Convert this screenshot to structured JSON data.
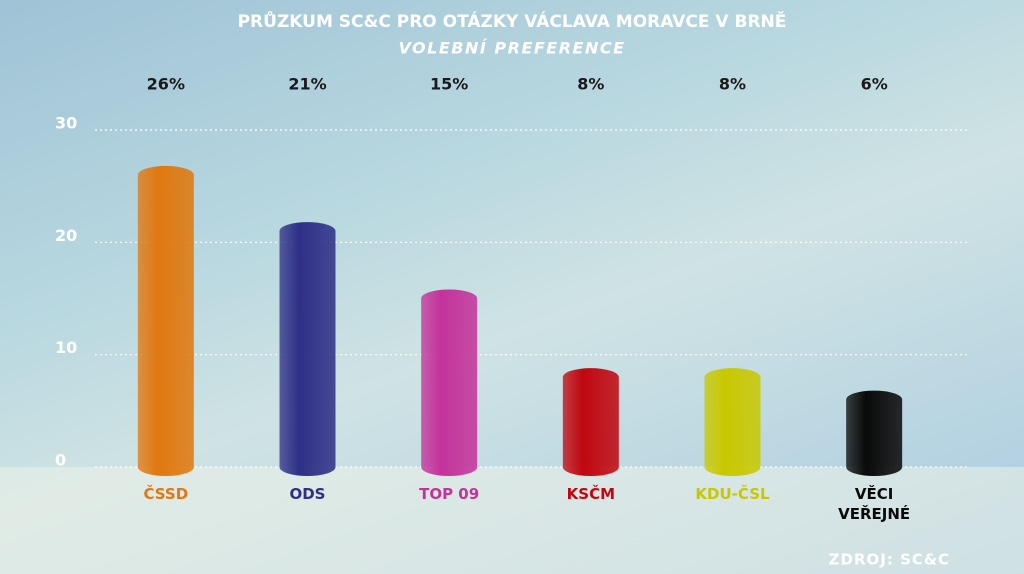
{
  "chart_data": {
    "type": "bar",
    "title": "PRŮZKUM SC&C PRO OTÁZKY VÁCLAVA MORAVCE V BRNĚ",
    "subtitle": "VOLEBNÍ PREFERENCE",
    "categories": [
      "ČSSD",
      "ODS",
      "TOP 09",
      "KSČM",
      "KDU-ČSL",
      "VĚCI VEŘEJNÉ"
    ],
    "values": [
      26,
      21,
      15,
      8,
      8,
      6
    ],
    "value_labels": [
      "26%",
      "21%",
      "15%",
      "8%",
      "8%",
      "6%"
    ],
    "colors": [
      "#e0780f",
      "#2e2f86",
      "#c4329a",
      "#c0070f",
      "#c8c800",
      "#0a0a0a"
    ],
    "ylim": [
      0,
      30
    ],
    "yticks": [
      0,
      10,
      20,
      30
    ],
    "grid": true,
    "source": "ZDROJ: SC&C"
  }
}
